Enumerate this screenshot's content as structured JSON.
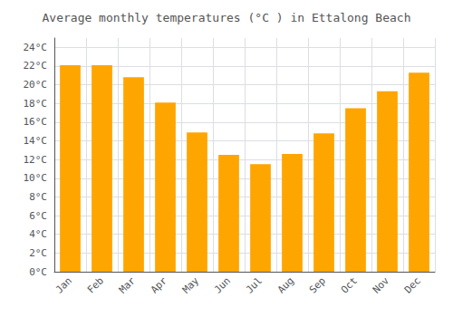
{
  "chart_data": {
    "type": "bar",
    "title": "Average monthly temperatures (°C ) in Ettalong Beach",
    "categories": [
      "Jan",
      "Feb",
      "Mar",
      "Apr",
      "May",
      "Jun",
      "Jul",
      "Aug",
      "Sep",
      "Oct",
      "Nov",
      "Dec"
    ],
    "values": [
      22.1,
      22.1,
      20.8,
      18.1,
      14.9,
      12.5,
      11.5,
      12.6,
      14.8,
      17.5,
      19.3,
      21.3
    ],
    "color": "#FFA500",
    "ylim": [
      0,
      25
    ],
    "yticks": [
      {
        "value": 0,
        "label": "0°C"
      },
      {
        "value": 2,
        "label": "2°C"
      },
      {
        "value": 4,
        "label": "4°C"
      },
      {
        "value": 6,
        "label": "6°C"
      },
      {
        "value": 8,
        "label": "8°C"
      },
      {
        "value": 10,
        "label": "10°C"
      },
      {
        "value": 12,
        "label": "12°C"
      },
      {
        "value": 14,
        "label": "14°C"
      },
      {
        "value": 16,
        "label": "16°C"
      },
      {
        "value": 18,
        "label": "18°C"
      },
      {
        "value": 20,
        "label": "20°C"
      },
      {
        "value": 22,
        "label": "22°C"
      },
      {
        "value": 24,
        "label": "24°C"
      }
    ],
    "grid": true
  }
}
